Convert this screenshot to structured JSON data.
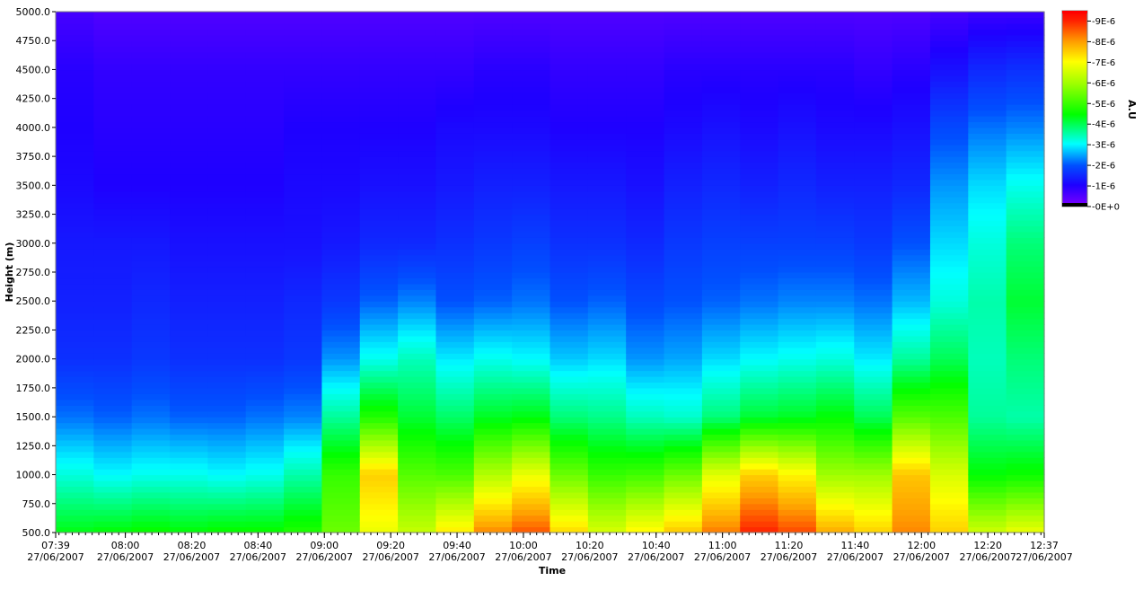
{
  "chart_data": {
    "type": "heatmap",
    "title": "",
    "xlabel": "Time",
    "ylabel": "Height (m)",
    "colorbar_label": "A.U",
    "colorbar_ticks": [
      "9E-6",
      "8E-6",
      "7E-6",
      "6E-6",
      "5E-6",
      "4E-6",
      "3E-6",
      "2E-6",
      "1E-6",
      "0E+0"
    ],
    "colorbar_range": [
      0,
      9.5
    ],
    "ylim": [
      500,
      5000
    ],
    "y_ticks": [
      "500.0",
      "750.0",
      "1000.0",
      "1250.0",
      "1500.0",
      "1750.0",
      "2000.0",
      "2250.0",
      "2500.0",
      "2750.0",
      "3000.0",
      "3250.0",
      "3500.0",
      "3750.0",
      "4000.0",
      "4250.0",
      "4500.0",
      "4750.0",
      "5000.0"
    ],
    "x_range": [
      "07:39",
      "12:37"
    ],
    "x_ticks": [
      {
        "time": "07:39",
        "date": "27/06/2007"
      },
      {
        "time": "08:00",
        "date": "27/06/2007"
      },
      {
        "time": "08:20",
        "date": "27/06/2007"
      },
      {
        "time": "08:40",
        "date": "27/06/2007"
      },
      {
        "time": "09:00",
        "date": "27/06/2007"
      },
      {
        "time": "09:20",
        "date": "27/06/2007"
      },
      {
        "time": "09:40",
        "date": "27/06/2007"
      },
      {
        "time": "10:00",
        "date": "27/06/2007"
      },
      {
        "time": "10:20",
        "date": "27/06/2007"
      },
      {
        "time": "10:40",
        "date": "27/06/2007"
      },
      {
        "time": "11:00",
        "date": "27/06/2007"
      },
      {
        "time": "11:20",
        "date": "27/06/2007"
      },
      {
        "time": "11:40",
        "date": "27/06/2007"
      },
      {
        "time": "12:00",
        "date": "27/06/2007"
      },
      {
        "time": "12:20",
        "date": "27/06/2007"
      },
      {
        "time": "12:37",
        "date": "27/06/2007"
      }
    ],
    "heights": [
      500,
      1000,
      1500,
      2000,
      2500,
      3000,
      3500,
      4000,
      4500,
      5000
    ],
    "value_unit": "1E-6 A.U",
    "columns": [
      {
        "time": "07:39",
        "values": [
          4.4,
          3.2,
          2.2,
          1.6,
          1.4,
          1.3,
          1.1,
          1.0,
          0.9,
          0.6
        ]
      },
      {
        "time": "07:51",
        "values": [
          4.5,
          3.0,
          2.1,
          1.6,
          1.4,
          1.3,
          1.0,
          0.9,
          0.8,
          0.5
        ]
      },
      {
        "time": "08:03",
        "values": [
          4.6,
          3.1,
          2.2,
          1.7,
          1.5,
          1.3,
          1.0,
          0.9,
          0.8,
          0.5
        ]
      },
      {
        "time": "08:15",
        "values": [
          4.5,
          3.1,
          2.1,
          1.6,
          1.4,
          1.2,
          1.0,
          0.9,
          0.8,
          0.5
        ]
      },
      {
        "time": "08:27",
        "values": [
          4.6,
          3.0,
          2.1,
          1.6,
          1.4,
          1.2,
          1.0,
          0.9,
          0.8,
          0.5
        ]
      },
      {
        "time": "08:39",
        "values": [
          4.6,
          3.1,
          2.2,
          1.6,
          1.4,
          1.2,
          1.0,
          0.9,
          0.8,
          0.5
        ]
      },
      {
        "time": "08:51",
        "values": [
          4.8,
          3.5,
          2.3,
          1.7,
          1.5,
          1.2,
          1.1,
          1.0,
          0.8,
          0.5
        ]
      },
      {
        "time": "09:03",
        "values": [
          5.5,
          5.0,
          3.6,
          2.4,
          1.7,
          1.3,
          1.1,
          1.0,
          0.8,
          0.5
        ]
      },
      {
        "time": "09:15",
        "values": [
          6.8,
          7.5,
          4.8,
          3.1,
          2.1,
          1.5,
          1.2,
          1.0,
          0.8,
          0.5
        ]
      },
      {
        "time": "09:27",
        "values": [
          6.4,
          5.3,
          4.2,
          3.4,
          2.3,
          1.5,
          1.2,
          1.0,
          0.8,
          0.5
        ]
      },
      {
        "time": "09:39",
        "values": [
          7.2,
          5.2,
          3.9,
          2.9,
          2.0,
          1.6,
          1.3,
          1.1,
          0.8,
          0.5
        ]
      },
      {
        "time": "09:51",
        "values": [
          8.2,
          6.2,
          4.3,
          3.1,
          2.1,
          1.7,
          1.4,
          1.1,
          0.9,
          0.5
        ]
      },
      {
        "time": "10:03",
        "values": [
          8.6,
          6.8,
          4.4,
          3.0,
          2.2,
          1.8,
          1.4,
          1.1,
          0.9,
          0.5
        ]
      },
      {
        "time": "10:15",
        "values": [
          7.4,
          5.5,
          3.8,
          2.7,
          2.0,
          1.6,
          1.3,
          1.0,
          0.8,
          0.5
        ]
      },
      {
        "time": "10:27",
        "values": [
          6.6,
          5.0,
          3.7,
          2.8,
          2.1,
          1.6,
          1.3,
          1.0,
          0.8,
          0.5
        ]
      },
      {
        "time": "10:39",
        "values": [
          7.1,
          5.1,
          3.4,
          2.4,
          1.9,
          1.5,
          1.2,
          1.0,
          0.8,
          0.5
        ]
      },
      {
        "time": "10:51",
        "values": [
          7.6,
          5.5,
          3.3,
          2.5,
          2.0,
          1.7,
          1.4,
          1.1,
          0.9,
          0.5
        ]
      },
      {
        "time": "11:03",
        "values": [
          8.3,
          6.7,
          3.8,
          2.8,
          2.1,
          1.8,
          1.5,
          1.2,
          0.9,
          0.5
        ]
      },
      {
        "time": "11:15",
        "values": [
          9.0,
          7.5,
          4.2,
          3.0,
          2.2,
          1.8,
          1.4,
          1.1,
          0.9,
          0.5
        ]
      },
      {
        "time": "11:27",
        "values": [
          8.7,
          7.1,
          4.3,
          3.1,
          2.3,
          1.8,
          1.5,
          1.2,
          0.9,
          0.5
        ]
      },
      {
        "time": "11:39",
        "values": [
          7.9,
          6.0,
          4.5,
          3.2,
          2.3,
          1.8,
          1.4,
          1.1,
          0.9,
          0.5
        ]
      },
      {
        "time": "11:51",
        "values": [
          7.5,
          6.0,
          4.0,
          2.9,
          2.2,
          1.7,
          1.4,
          1.1,
          0.8,
          0.5
        ]
      },
      {
        "time": "12:03",
        "values": [
          8.2,
          7.6,
          5.3,
          3.6,
          2.6,
          2.0,
          1.5,
          1.2,
          0.9,
          0.5
        ]
      },
      {
        "time": "12:15",
        "values": [
          7.5,
          6.6,
          5.2,
          4.0,
          3.2,
          2.8,
          2.4,
          1.9,
          1.2,
          0.6
        ]
      },
      {
        "time": "12:27",
        "values": [
          6.5,
          4.5,
          3.6,
          3.4,
          3.5,
          3.2,
          2.8,
          2.2,
          1.5,
          0.7
        ]
      },
      {
        "time": "12:37",
        "values": [
          6.8,
          4.6,
          3.5,
          3.8,
          4.2,
          3.8,
          3.1,
          2.3,
          1.6,
          0.7
        ]
      }
    ],
    "legend_placement": "right",
    "grid": false
  }
}
